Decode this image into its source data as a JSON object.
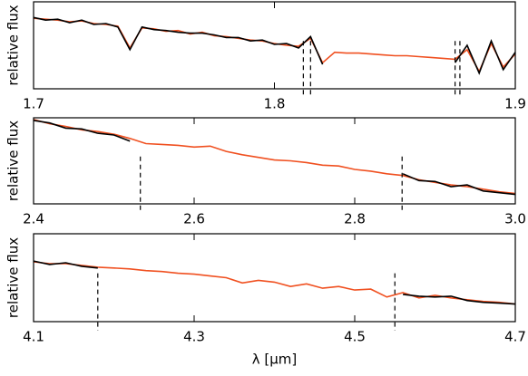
{
  "chart_data": [
    {
      "type": "line",
      "ylabel": "relative flux",
      "xlim": [
        1.7,
        1.9
      ],
      "xticks": [
        1.7,
        1.8,
        1.9
      ],
      "ylim": [
        0,
        1
      ],
      "x": [
        1.7,
        1.705,
        1.71,
        1.715,
        1.72,
        1.725,
        1.73,
        1.735,
        1.74,
        1.745,
        1.75,
        1.755,
        1.76,
        1.765,
        1.77,
        1.775,
        1.78,
        1.785,
        1.79,
        1.795,
        1.8,
        1.805,
        1.81,
        1.815,
        1.82,
        1.825,
        1.83,
        1.835,
        1.84,
        1.845,
        1.85,
        1.855,
        1.86,
        1.865,
        1.87,
        1.875,
        1.88,
        1.885,
        1.89,
        1.895,
        1.9
      ],
      "series": [
        {
          "color": "#000000",
          "values": [
            0.82,
            0.79,
            0.8,
            0.76,
            0.79,
            0.74,
            0.75,
            0.71,
            0.45,
            0.71,
            0.68,
            0.67,
            0.65,
            0.64,
            0.64,
            0.62,
            0.59,
            0.59,
            0.55,
            0.56,
            0.51,
            0.52,
            0.47,
            0.6,
            0.28,
            null,
            null,
            null,
            null,
            null,
            null,
            null,
            null,
            null,
            null,
            0.3,
            0.5,
            0.18,
            0.55,
            0.22,
            0.42
          ]
        },
        {
          "color": "#f05020",
          "values": [
            0.81,
            0.8,
            0.79,
            0.77,
            0.78,
            0.75,
            0.74,
            0.72,
            0.47,
            0.7,
            0.69,
            0.66,
            0.67,
            0.63,
            0.65,
            0.61,
            0.6,
            0.58,
            0.56,
            0.55,
            0.52,
            0.5,
            0.49,
            0.58,
            0.3,
            0.42,
            0.41,
            0.41,
            0.4,
            0.39,
            0.38,
            0.38,
            0.37,
            0.36,
            0.35,
            0.34,
            0.45,
            0.2,
            0.52,
            0.25,
            0.4
          ]
        }
      ],
      "vlines": [
        1.812,
        1.815,
        1.875,
        1.877
      ]
    },
    {
      "type": "line",
      "ylabel": "relative flux",
      "xlim": [
        2.4,
        3.0
      ],
      "xticks": [
        2.4,
        2.6,
        2.8,
        {
          "value": 3.0,
          "label": "3.0"
        }
      ],
      "ylim": [
        0,
        1
      ],
      "x": [
        2.4,
        2.42,
        2.44,
        2.46,
        2.48,
        2.5,
        2.52,
        2.54,
        2.56,
        2.58,
        2.6,
        2.62,
        2.64,
        2.66,
        2.68,
        2.7,
        2.72,
        2.74,
        2.76,
        2.78,
        2.8,
        2.82,
        2.84,
        2.86,
        2.88,
        2.9,
        2.92,
        2.94,
        2.96,
        2.98,
        3.0
      ],
      "series": [
        {
          "color": "#000000",
          "values": [
            0.97,
            0.94,
            0.88,
            0.87,
            0.82,
            0.8,
            0.73,
            null,
            null,
            null,
            null,
            null,
            null,
            null,
            null,
            null,
            null,
            null,
            null,
            null,
            null,
            null,
            null,
            0.35,
            0.27,
            0.26,
            0.2,
            0.22,
            0.15,
            0.13,
            0.11
          ]
        },
        {
          "color": "#f05020",
          "values": [
            0.98,
            0.93,
            0.9,
            0.86,
            0.84,
            0.81,
            0.76,
            0.7,
            0.69,
            0.68,
            0.66,
            0.67,
            0.61,
            0.57,
            0.54,
            0.51,
            0.5,
            0.48,
            0.45,
            0.44,
            0.4,
            0.38,
            0.35,
            0.33,
            0.28,
            0.25,
            0.22,
            0.2,
            0.17,
            0.14,
            0.12
          ]
        }
      ],
      "vlines": [
        2.533,
        2.859
      ]
    },
    {
      "type": "line",
      "ylabel": "relative flux",
      "xlabel": "λ [μm]",
      "xlim": [
        4.1,
        4.7
      ],
      "xticks": [
        4.1,
        4.3,
        4.5,
        4.7
      ],
      "ylim": [
        0,
        1
      ],
      "x": [
        4.1,
        4.12,
        4.14,
        4.16,
        4.18,
        4.2,
        4.22,
        4.24,
        4.26,
        4.28,
        4.3,
        4.32,
        4.34,
        4.36,
        4.38,
        4.4,
        4.42,
        4.44,
        4.46,
        4.48,
        4.5,
        4.52,
        4.54,
        4.56,
        4.58,
        4.6,
        4.62,
        4.64,
        4.66,
        4.68,
        4.7
      ],
      "series": [
        {
          "color": "#000000",
          "values": [
            0.69,
            0.65,
            0.67,
            0.63,
            0.61,
            null,
            null,
            null,
            null,
            null,
            null,
            null,
            null,
            null,
            null,
            null,
            null,
            null,
            null,
            null,
            null,
            null,
            null,
            0.31,
            0.29,
            0.28,
            0.29,
            0.24,
            0.22,
            0.21,
            0.2
          ]
        },
        {
          "color": "#f05020",
          "values": [
            0.68,
            0.66,
            0.66,
            0.64,
            0.62,
            0.61,
            0.6,
            0.58,
            0.57,
            0.55,
            0.54,
            0.52,
            0.5,
            0.44,
            0.47,
            0.45,
            0.4,
            0.43,
            0.38,
            0.4,
            0.36,
            0.37,
            0.28,
            0.33,
            0.27,
            0.3,
            0.27,
            0.25,
            0.23,
            0.22,
            0.2
          ]
        }
      ],
      "vlines": [
        4.18,
        4.55
      ]
    }
  ]
}
